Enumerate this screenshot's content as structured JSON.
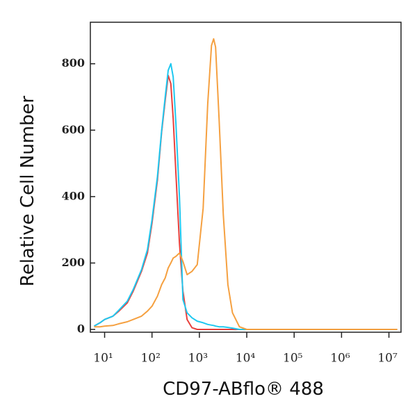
{
  "chart_data": {
    "type": "line",
    "xlabel": "CD97-ABflo® 488",
    "ylabel": "Relative Cell Number",
    "xscale": "log",
    "x": [
      6,
      8,
      10,
      15,
      20,
      30,
      40,
      60,
      80,
      100,
      130,
      160,
      190,
      220,
      250,
      280,
      320,
      380,
      450,
      550,
      700,
      900,
      1200,
      1500,
      1800,
      2000,
      2200,
      2600,
      3200,
      4000,
      5000,
      7000,
      10000,
      100000,
      1000000,
      15000000
    ],
    "series": [
      {
        "color": "#e8403c",
        "values": [
          10,
          20,
          30,
          40,
          55,
          80,
          115,
          175,
          230,
          320,
          450,
          595,
          690,
          765,
          740,
          635,
          470,
          260,
          115,
          30,
          5,
          0,
          0,
          0,
          0,
          0,
          0,
          0,
          0,
          0,
          0,
          0,
          0,
          0,
          0,
          0
        ]
      },
      {
        "color": "#1ec8f0",
        "values": [
          10,
          20,
          30,
          40,
          58,
          85,
          120,
          180,
          240,
          330,
          460,
          600,
          700,
          780,
          800,
          760,
          620,
          400,
          90,
          50,
          35,
          25,
          20,
          15,
          13,
          12,
          10,
          8,
          8,
          6,
          4,
          0,
          0,
          0,
          0,
          0
        ]
      },
      {
        "color": "#f5a040",
        "values": [
          8,
          8,
          10,
          12,
          17,
          23,
          30,
          40,
          55,
          70,
          100,
          135,
          155,
          185,
          200,
          215,
          220,
          230,
          205,
          165,
          175,
          195,
          365,
          680,
          855,
          875,
          850,
          635,
          345,
          135,
          50,
          8,
          0,
          0,
          0,
          0
        ]
      }
    ],
    "xlim": [
      5,
      18000000
    ],
    "ylim": [
      0,
      925
    ],
    "xticks": [
      {
        "value": 10,
        "label": "10¹"
      },
      {
        "value": 100,
        "label": "10²"
      },
      {
        "value": 1000,
        "label": "10³"
      },
      {
        "value": 10000,
        "label": "10⁴"
      },
      {
        "value": 100000,
        "label": "10⁵"
      },
      {
        "value": 1000000,
        "label": "10⁶"
      },
      {
        "value": 10000000,
        "label": "10⁷"
      }
    ],
    "yticks": [
      0,
      200,
      400,
      600,
      800
    ]
  }
}
